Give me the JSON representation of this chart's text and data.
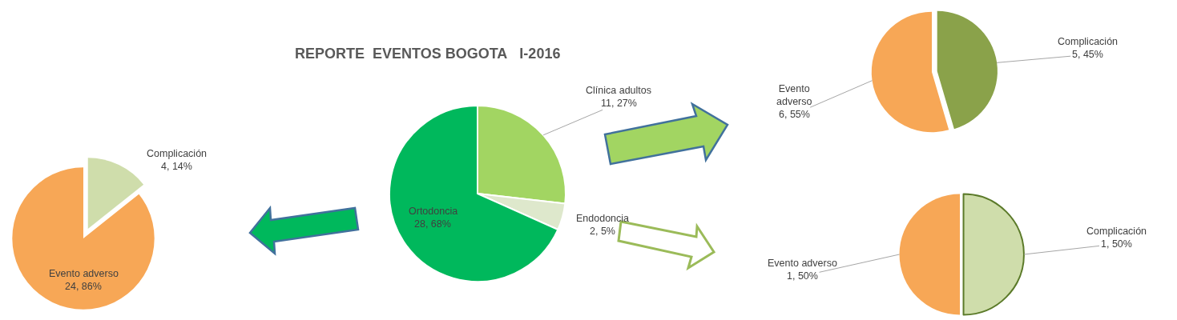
{
  "chart_data": [
    {
      "type": "pie",
      "categories": [
        "Complicación",
        "Evento adverso"
      ],
      "values": [
        4,
        24
      ],
      "colors": [
        "#cfddab",
        "#f7a756"
      ],
      "value_labels": [
        "4, 14%",
        "24, 86%"
      ]
    },
    {
      "type": "pie",
      "title": "REPORTE  EVENTOS BOGOTA   I-2016",
      "categories": [
        "Clínica adultos",
        "Endodoncia",
        "Ortodoncia"
      ],
      "values": [
        11,
        2,
        28
      ],
      "colors": [
        "#a2d562",
        "#dee8cc",
        "#00b85c"
      ],
      "value_labels": [
        "11, 27%",
        "2, 5%",
        "28, 68%"
      ]
    },
    {
      "type": "pie",
      "categories": [
        "Complicación",
        "Evento adverso"
      ],
      "values": [
        5,
        6
      ],
      "colors": [
        "#8aa24a",
        "#f7a756"
      ],
      "value_labels": [
        "5, 45%",
        "6, 55%"
      ]
    },
    {
      "type": "pie",
      "categories": [
        "Complicación",
        "Evento adverso"
      ],
      "values": [
        1,
        1
      ],
      "colors": [
        "#cfddab",
        "#f7a756"
      ],
      "value_labels": [
        "1, 50%",
        "1, 50%"
      ]
    }
  ]
}
